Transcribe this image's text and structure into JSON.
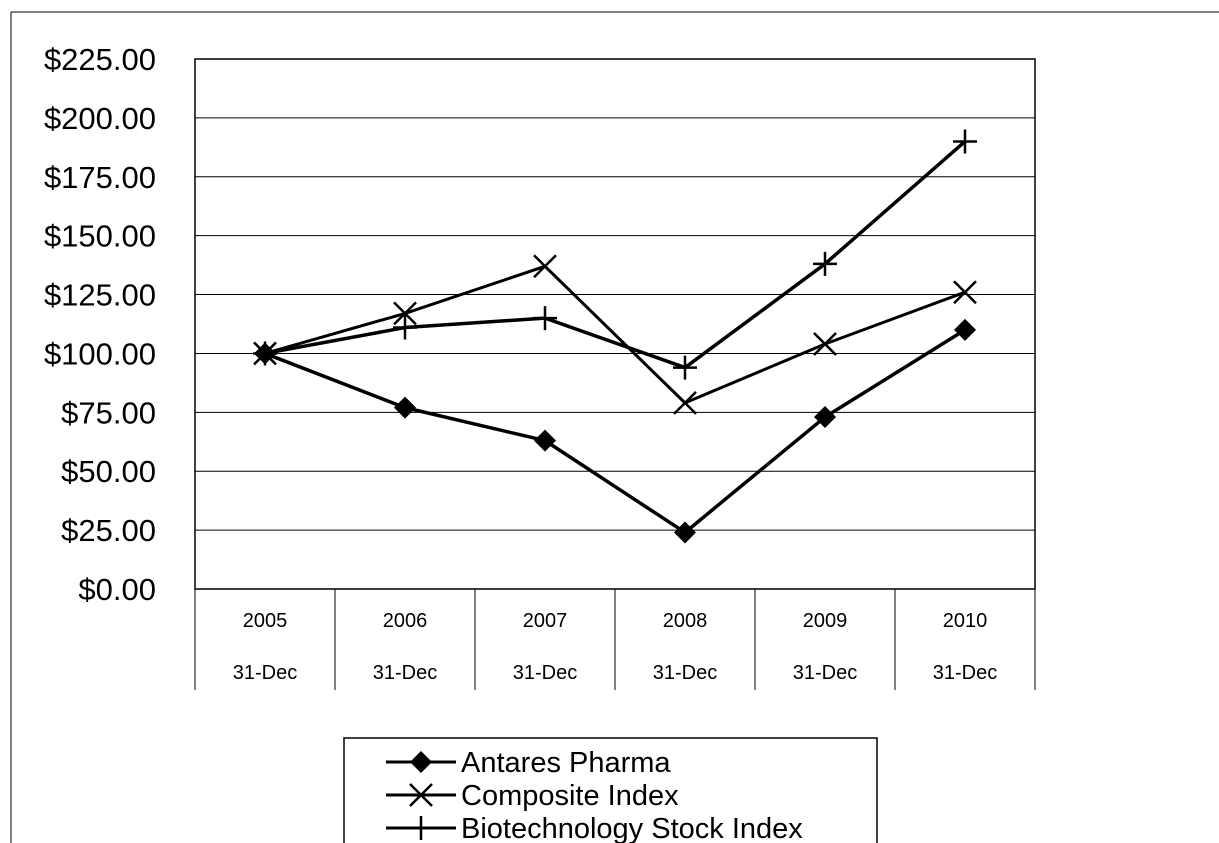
{
  "chart_data": {
    "type": "line",
    "categories": [
      "2005",
      "2006",
      "2007",
      "2008",
      "2009",
      "2010"
    ],
    "category_sublabels": [
      "31-Dec",
      "31-Dec",
      "31-Dec",
      "31-Dec",
      "31-Dec",
      "31-Dec"
    ],
    "y_tick_labels": [
      "$0.00",
      "$25.00",
      "$50.00",
      "$75.00",
      "$100.00",
      "$125.00",
      "$150.00",
      "$175.00",
      "$200.00",
      "$225.00"
    ],
    "ylim": [
      0,
      225
    ],
    "ystep": 25,
    "grid": "horizontal",
    "legend_position": "bottom",
    "series": [
      {
        "name": "Antares Pharma",
        "marker": "diamond",
        "values": [
          100,
          77,
          63,
          24,
          73,
          110
        ]
      },
      {
        "name": "Composite Index",
        "marker": "x",
        "values": [
          100,
          117,
          137,
          79,
          104,
          126
        ]
      },
      {
        "name": "Biotechnology Stock Index",
        "marker": "plus",
        "values": [
          100,
          111,
          115,
          94,
          138,
          190
        ]
      }
    ]
  }
}
